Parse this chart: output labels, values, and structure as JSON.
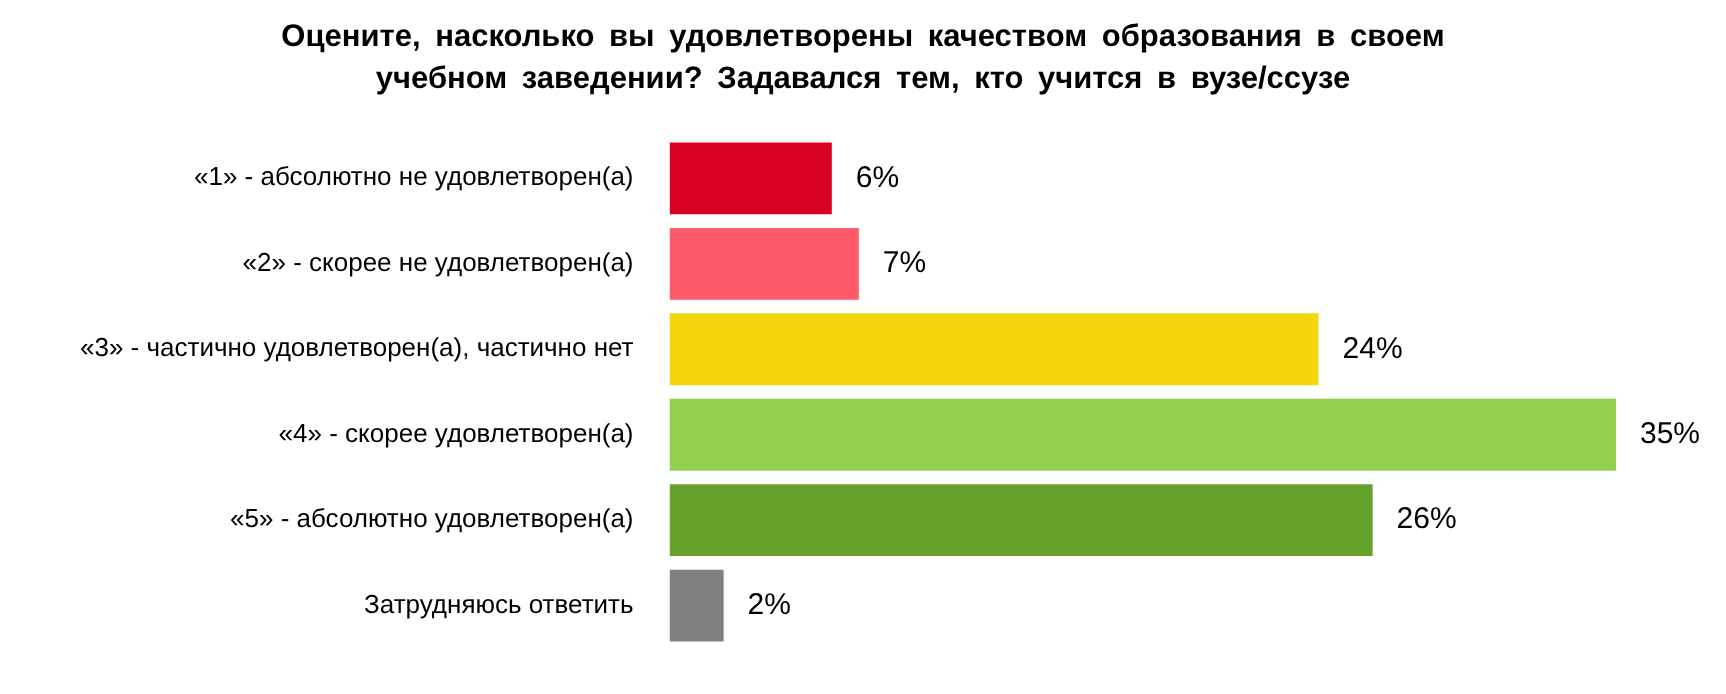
{
  "chart_data": {
    "type": "bar",
    "orientation": "horizontal",
    "title": "Оцените, насколько вы удовлетворены качеством образования в своем учебном заведении? Задавался тем, кто учится в вузе/ссузе",
    "categories": [
      "«1» - абсолютно не удовлетворен(а)",
      "«2» - скорее не удовлетворен(а)",
      "«3» - частично удовлетворен(а), частично нет",
      "«4» - скорее удовлетворен(а)",
      "«5» - абсолютно удовлетворен(а)",
      "Затрудняюсь ответить"
    ],
    "values": [
      6,
      7,
      24,
      35,
      26,
      2
    ],
    "value_labels": [
      "6%",
      "7%",
      "24%",
      "35%",
      "26%",
      "2%"
    ],
    "colors": [
      "#d7001f",
      "#ff5a6a",
      "#f5d50c",
      "#92d050",
      "#64a22c",
      "#808080"
    ],
    "legend": false
  }
}
